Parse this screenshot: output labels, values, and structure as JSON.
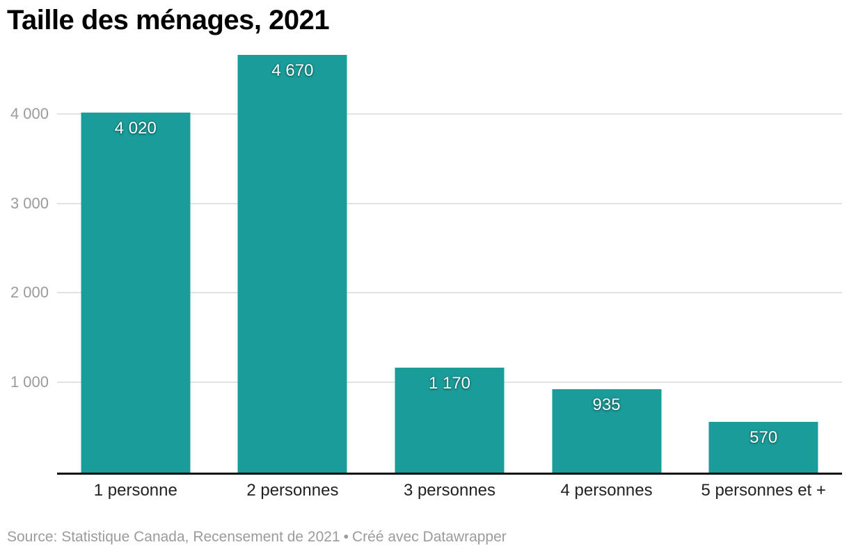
{
  "header": {
    "title": "Taille des ménages, 2021"
  },
  "chart_data": {
    "type": "bar",
    "title": "Taille des ménages, 2021",
    "categories": [
      "1 personne",
      "2 personnes",
      "3 personnes",
      "4 personnes",
      "5 personnes et +"
    ],
    "values": [
      4020,
      4670,
      1170,
      935,
      570
    ],
    "value_labels": [
      "4 020",
      "4 670",
      "1 170",
      "935",
      "570"
    ],
    "y_ticks": [
      1000,
      2000,
      3000,
      4000
    ],
    "y_tick_labels": [
      "1 000",
      "2 000",
      "3 000",
      "4 000"
    ],
    "ylim": [
      0,
      5280
    ],
    "xlabel": "",
    "ylabel": "",
    "grid": true,
    "legend": "none",
    "bar_color": "#1a9c9a",
    "gridline_color": "#e2e2e2",
    "baseline_color": "#0d0d0d",
    "tick_label_color": "#9b9b9b",
    "category_label_color": "#222222",
    "value_label_color": "#ffffff"
  },
  "footer": {
    "source": "Source: Statistique Canada, Recensement de 2021",
    "separator": "•",
    "attribution": "Créé avec Datawrapper"
  }
}
